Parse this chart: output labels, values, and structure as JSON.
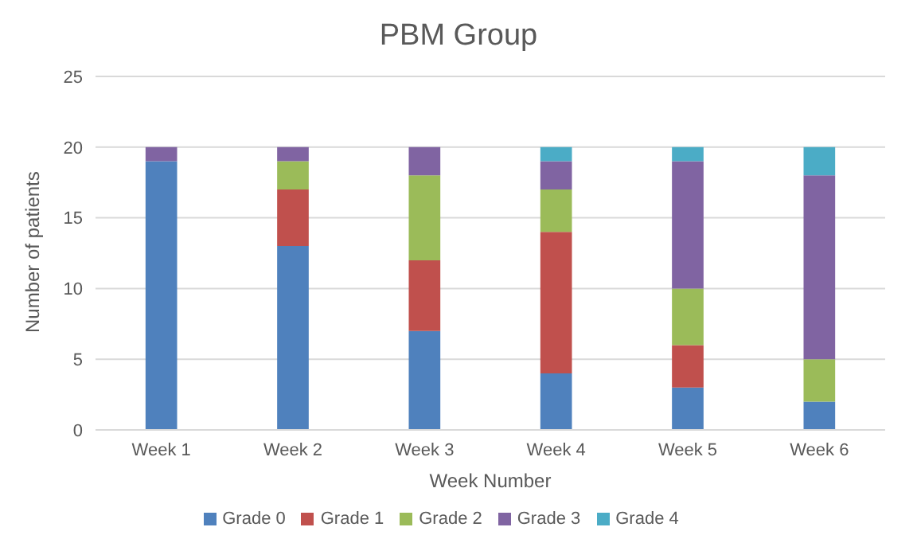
{
  "chart_data": {
    "type": "bar",
    "title": "PBM Group",
    "xlabel": "Week Number",
    "ylabel": "Number of patients",
    "categories": [
      "Week 1",
      "Week 2",
      "Week 3",
      "Week 4",
      "Week 5",
      "Week 6"
    ],
    "series": [
      {
        "name": "Grade 0",
        "color": "#4f81bd",
        "values": [
          19,
          13,
          7,
          4,
          3,
          2
        ]
      },
      {
        "name": "Grade 1",
        "color": "#c0504d",
        "values": [
          0,
          4,
          5,
          10,
          3,
          0
        ]
      },
      {
        "name": "Grade 2",
        "color": "#9bbb59",
        "values": [
          0,
          2,
          6,
          3,
          4,
          3
        ]
      },
      {
        "name": "Grade 3",
        "color": "#8064a2",
        "values": [
          1,
          1,
          2,
          2,
          9,
          13
        ]
      },
      {
        "name": "Grade 4",
        "color": "#4bacc6",
        "values": [
          0,
          0,
          0,
          1,
          1,
          2
        ]
      }
    ],
    "stacked": true,
    "ylim": [
      0,
      25
    ],
    "yticks": [
      0,
      5,
      10,
      15,
      20,
      25
    ],
    "grid": "y",
    "legend": "bottom"
  }
}
